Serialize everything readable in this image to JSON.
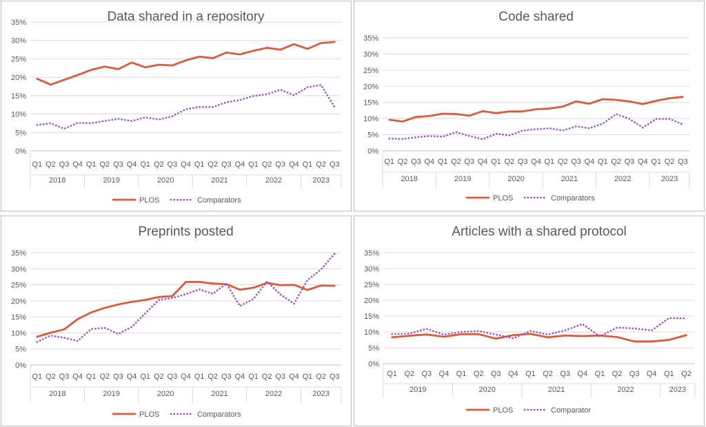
{
  "colors": {
    "plos": "#E0583A",
    "comparators": "#9B45D6",
    "axis": "#d9d9d9",
    "text": "#595959"
  },
  "chart_data": [
    {
      "type": "line",
      "title": "Data shared in a repository",
      "yticks": [
        "0%",
        "5%",
        "10%",
        "15%",
        "20%",
        "25%",
        "30%",
        "35%"
      ],
      "ylim": [
        0,
        35
      ],
      "quarters": [
        "Q1",
        "Q2",
        "Q3",
        "Q4",
        "Q1",
        "Q2",
        "Q3",
        "Q4",
        "Q1",
        "Q2",
        "Q3",
        "Q4",
        "Q1",
        "Q2",
        "Q3",
        "Q4",
        "Q1",
        "Q2",
        "Q3",
        "Q4",
        "Q1",
        "Q2",
        "Q3"
      ],
      "years": [
        {
          "label": "2018",
          "count": 4
        },
        {
          "label": "2019",
          "count": 4
        },
        {
          "label": "2020",
          "count": 4
        },
        {
          "label": "2021",
          "count": 4
        },
        {
          "label": "2022",
          "count": 4
        },
        {
          "label": "2023",
          "count": 3
        }
      ],
      "series": [
        {
          "name": "PLOS",
          "style": "solid",
          "values": [
            19.6,
            18.0,
            19.3,
            20.6,
            22.0,
            22.9,
            22.2,
            24.0,
            22.7,
            23.4,
            23.2,
            24.6,
            25.6,
            25.2,
            26.7,
            26.2,
            27.2,
            28.0,
            27.5,
            29.0,
            27.7,
            29.3,
            29.6
          ]
        },
        {
          "name": "Comparators",
          "style": "dotted",
          "values": [
            7.0,
            7.5,
            6.0,
            7.6,
            7.5,
            8.1,
            8.7,
            8.1,
            9.1,
            8.5,
            9.4,
            11.3,
            11.9,
            11.9,
            13.2,
            13.8,
            14.9,
            15.4,
            16.6,
            15.1,
            17.3,
            17.9,
            11.9
          ]
        }
      ]
    },
    {
      "type": "line",
      "title": "Code shared",
      "yticks": [
        "0%",
        "5%",
        "10%",
        "15%",
        "20%",
        "25%",
        "30%",
        "35%"
      ],
      "ylim": [
        0,
        35
      ],
      "quarters": [
        "Q1",
        "Q2",
        "Q3",
        "Q4",
        "Q1",
        "Q2",
        "Q3",
        "Q4",
        "Q1",
        "Q2",
        "Q3",
        "Q4",
        "Q1",
        "Q2",
        "Q3",
        "Q4",
        "Q1",
        "Q2",
        "Q3",
        "Q4",
        "Q1",
        "Q2",
        "Q3"
      ],
      "years": [
        {
          "label": "2018",
          "count": 4
        },
        {
          "label": "2019",
          "count": 4
        },
        {
          "label": "2020",
          "count": 4
        },
        {
          "label": "2021",
          "count": 4
        },
        {
          "label": "2022",
          "count": 4
        },
        {
          "label": "2023",
          "count": 3
        }
      ],
      "series": [
        {
          "name": "PLOS",
          "style": "solid",
          "values": [
            9.6,
            9.1,
            10.5,
            10.8,
            11.5,
            11.4,
            10.9,
            12.3,
            11.7,
            12.2,
            12.2,
            12.9,
            13.1,
            13.7,
            15.3,
            14.6,
            16.0,
            15.8,
            15.3,
            14.5,
            15.5,
            16.3,
            16.7
          ]
        },
        {
          "name": "Comparators",
          "style": "dotted",
          "values": [
            3.8,
            3.7,
            4.2,
            4.6,
            4.4,
            5.8,
            4.6,
            3.6,
            5.3,
            4.8,
            6.3,
            6.7,
            7.0,
            6.3,
            7.6,
            7.0,
            8.4,
            11.4,
            9.9,
            7.2,
            9.9,
            9.9,
            8.2
          ]
        }
      ]
    },
    {
      "type": "line",
      "title": "Preprints posted",
      "yticks": [
        "0%",
        "5%",
        "10%",
        "15%",
        "20%",
        "25%",
        "30%",
        "35%"
      ],
      "ylim": [
        0,
        35
      ],
      "quarters": [
        "Q1",
        "Q2",
        "Q3",
        "Q4",
        "Q1",
        "Q2",
        "Q3",
        "Q4",
        "Q1",
        "Q2",
        "Q3",
        "Q4",
        "Q1",
        "Q2",
        "Q3",
        "Q4",
        "Q1",
        "Q2",
        "Q3",
        "Q4",
        "Q1",
        "Q2",
        "Q3"
      ],
      "years": [
        {
          "label": "2018",
          "count": 4
        },
        {
          "label": "2019",
          "count": 4
        },
        {
          "label": "2020",
          "count": 4
        },
        {
          "label": "2021",
          "count": 4
        },
        {
          "label": "2022",
          "count": 4
        },
        {
          "label": "2023",
          "count": 3
        }
      ],
      "series": [
        {
          "name": "PLOS",
          "style": "solid",
          "values": [
            8.8,
            10.1,
            11.1,
            14.3,
            16.4,
            17.8,
            18.9,
            19.7,
            20.3,
            21.2,
            21.5,
            25.9,
            25.9,
            25.4,
            25.2,
            23.5,
            24.1,
            25.6,
            24.9,
            25.0,
            23.4,
            24.8,
            24.7
          ]
        },
        {
          "name": "Comparators",
          "style": "dotted",
          "values": [
            7.2,
            9.2,
            8.5,
            7.5,
            11.2,
            11.6,
            9.7,
            11.9,
            16.1,
            20.3,
            20.9,
            22.1,
            23.6,
            22.2,
            25.4,
            18.4,
            20.6,
            26.0,
            22.0,
            19.1,
            26.5,
            29.8,
            34.7
          ]
        }
      ]
    },
    {
      "type": "line",
      "title": "Articles with a shared protocol",
      "yticks": [
        "0%",
        "5%",
        "10%",
        "15%",
        "20%",
        "25%",
        "30%",
        "35%"
      ],
      "ylim": [
        0,
        35
      ],
      "quarters": [
        "Q1",
        "Q2",
        "Q3",
        "Q4",
        "Q1",
        "Q2",
        "Q3",
        "Q4",
        "Q1",
        "Q2",
        "Q3",
        "Q4",
        "Q1",
        "Q2",
        "Q3",
        "Q4",
        "Q1",
        "Q2"
      ],
      "years": [
        {
          "label": "2019",
          "count": 4
        },
        {
          "label": "2020",
          "count": 4
        },
        {
          "label": "2021",
          "count": 4
        },
        {
          "label": "2022",
          "count": 4
        },
        {
          "label": "2023",
          "count": 2
        }
      ],
      "series": [
        {
          "name": "PLOS",
          "style": "solid",
          "values": [
            8.3,
            8.8,
            9.2,
            8.5,
            9.3,
            9.3,
            7.9,
            9.0,
            9.4,
            8.3,
            8.9,
            8.7,
            8.9,
            8.4,
            7.0,
            7.0,
            7.5,
            9.0
          ]
        },
        {
          "name": "Comparator",
          "style": "dotted",
          "values": [
            9.3,
            9.5,
            11.0,
            9.2,
            10.0,
            10.3,
            9.2,
            8.0,
            10.3,
            9.2,
            10.5,
            12.5,
            8.6,
            11.4,
            11.1,
            10.5,
            14.4,
            14.3
          ]
        }
      ]
    }
  ]
}
